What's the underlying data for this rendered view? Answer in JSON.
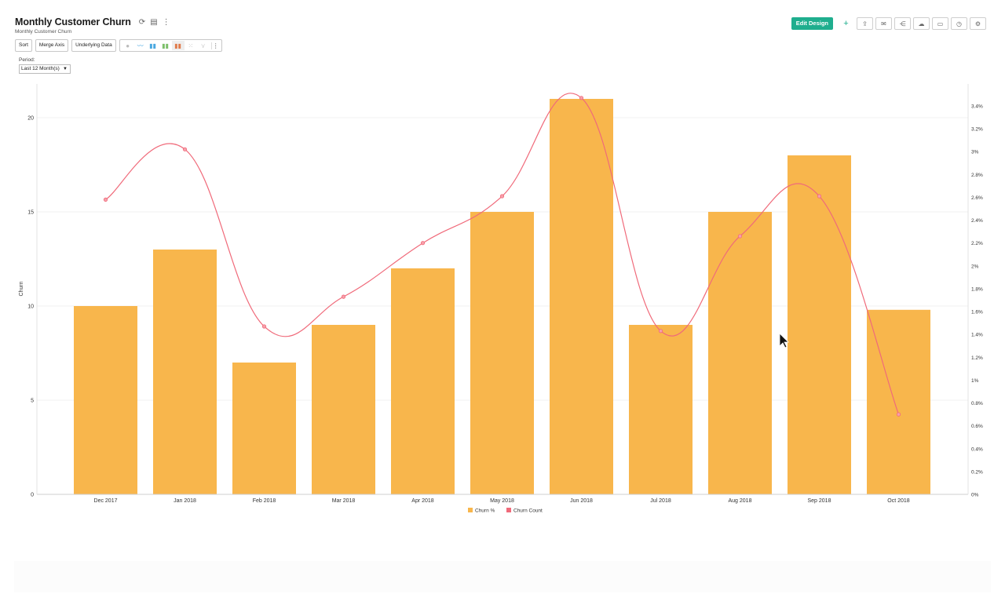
{
  "header": {
    "title": "Monthly Customer Churn",
    "subtitle": "Monthly Customer Churn",
    "edit_design_label": "Edit Design"
  },
  "toolbar": {
    "sort_label": "Sort",
    "merge_axis_label": "Merge Axis",
    "underlying_data_label": "Underlying Data"
  },
  "filter": {
    "period_label": "Period:",
    "period_value": "Last 12 Month(s)"
  },
  "colors": {
    "bar": "#f8b64c",
    "line": "#f06a7a",
    "accent": "#1fae8e"
  },
  "chart_data": {
    "type": "bar",
    "categories": [
      "Dec 2017",
      "Jan 2018",
      "Feb 2018",
      "Mar 2018",
      "Apr 2018",
      "May 2018",
      "Jun 2018",
      "Jul 2018",
      "Aug 2018",
      "Sep 2018",
      "Oct 2018"
    ],
    "series": [
      {
        "name": "Churn %",
        "type": "bar",
        "axis": "left",
        "values": [
          10,
          13,
          7,
          9,
          12,
          15,
          21,
          9,
          15,
          18,
          9.8
        ]
      },
      {
        "name": "Churn Count",
        "type": "line",
        "axis": "right",
        "values": [
          2.58,
          3.02,
          1.47,
          1.73,
          2.2,
          2.61,
          3.47,
          1.43,
          2.26,
          2.61,
          0.7
        ]
      }
    ],
    "ylabel": "Churn",
    "ylim": [
      0,
      22
    ],
    "yticks": [
      "0",
      "5",
      "10",
      "15",
      "20"
    ],
    "y2lim": [
      0,
      3.6
    ],
    "y2ticks": [
      "0%",
      "0.2%",
      "0.4%",
      "0.6%",
      "0.8%",
      "1%",
      "1.2%",
      "1.4%",
      "1.6%",
      "1.8%",
      "2%",
      "2.2%",
      "2.4%",
      "2.6%",
      "2.8%",
      "3%",
      "3.2%",
      "3.4%"
    ],
    "legend": "bottom"
  }
}
